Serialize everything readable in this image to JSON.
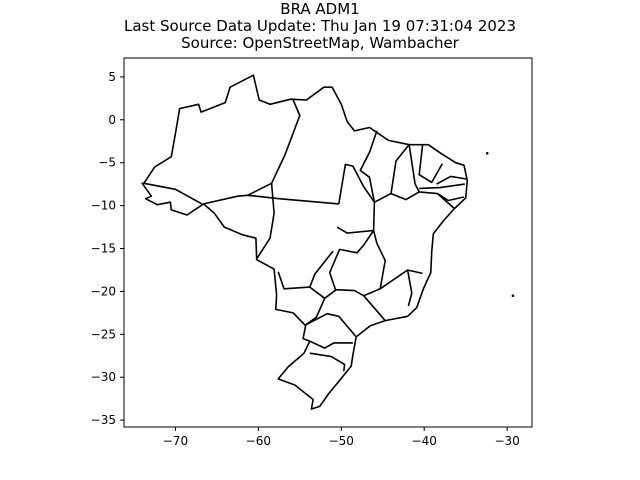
{
  "titles": {
    "line1": "BRA ADM1",
    "line2": "Last Source Data Update: Thu Jan 19 07:31:04 2023",
    "line3": "Source: OpenStreetMap, Wambacher"
  },
  "chart_data": {
    "type": "map",
    "title": "BRA ADM1",
    "subtitle": [
      "Last Source Data Update: Thu Jan 19 07:31:04 2023",
      "Source: OpenStreetMap, Wambacher"
    ],
    "xlabel": "",
    "ylabel": "",
    "xlim": [
      -76.2,
      -27
    ],
    "ylim": [
      -35.8,
      7.2
    ],
    "xticks": [
      -70,
      -60,
      -50,
      -40,
      -30
    ],
    "yticks": [
      5,
      0,
      -5,
      -10,
      -15,
      -20,
      -25,
      -30,
      -35
    ],
    "xtick_labels": [
      "−70",
      "−60",
      "−50",
      "−40",
      "−30"
    ],
    "ytick_labels": [
      "5",
      "0",
      "−5",
      "−10",
      "−15",
      "−20",
      "−25",
      "−30",
      "−35"
    ],
    "grid": false,
    "outline": [
      [
        -73.8,
        -7.4
      ],
      [
        -72.5,
        -5.5
      ],
      [
        -70.5,
        -4.3
      ],
      [
        -69.9,
        -1.1
      ],
      [
        -69.5,
        1.3
      ],
      [
        -67.2,
        1.8
      ],
      [
        -66.9,
        0.9
      ],
      [
        -64,
        2
      ],
      [
        -63.4,
        3.8
      ],
      [
        -60.6,
        5.2
      ],
      [
        -59.9,
        2.3
      ],
      [
        -58.6,
        1.8
      ],
      [
        -56.1,
        2.4
      ],
      [
        -54.2,
        2.3
      ],
      [
        -52.1,
        3.8
      ],
      [
        -51.1,
        3.8
      ],
      [
        -50,
        1.8
      ],
      [
        -49.3,
        -0.2
      ],
      [
        -48.4,
        -1.3
      ],
      [
        -46.6,
        -0.9
      ],
      [
        -44.3,
        -2.4
      ],
      [
        -41.8,
        -2.9
      ],
      [
        -39.5,
        -2.9
      ],
      [
        -38,
        -3.9
      ],
      [
        -36.2,
        -5
      ],
      [
        -35.2,
        -5.3
      ],
      [
        -34.8,
        -7.1
      ],
      [
        -35,
        -9.1
      ],
      [
        -36.4,
        -10.4
      ],
      [
        -37.7,
        -11.8
      ],
      [
        -38.9,
        -13.3
      ],
      [
        -39.1,
        -15.4
      ],
      [
        -39.2,
        -17.8
      ],
      [
        -40.1,
        -19.7
      ],
      [
        -40.9,
        -21.9
      ],
      [
        -42,
        -22.9
      ],
      [
        -44.7,
        -23.4
      ],
      [
        -46.5,
        -24
      ],
      [
        -48.2,
        -25.3
      ],
      [
        -48.6,
        -27.4
      ],
      [
        -48.8,
        -28.7
      ],
      [
        -50.4,
        -30.6
      ],
      [
        -51.5,
        -31.9
      ],
      [
        -52.6,
        -33.4
      ],
      [
        -53.6,
        -33.7
      ],
      [
        -53.4,
        -32.6
      ],
      [
        -55.6,
        -30.9
      ],
      [
        -57.6,
        -30.2
      ],
      [
        -56.4,
        -28.8
      ],
      [
        -54.5,
        -27.2
      ],
      [
        -53.8,
        -25.8
      ],
      [
        -54.6,
        -25.5
      ],
      [
        -54.3,
        -24
      ],
      [
        -55.8,
        -22.5
      ],
      [
        -57.9,
        -22.1
      ],
      [
        -57.8,
        -20.4
      ],
      [
        -58.1,
        -17.4
      ],
      [
        -60.2,
        -16.3
      ],
      [
        -60.3,
        -13.8
      ],
      [
        -61.9,
        -13.4
      ],
      [
        -64.1,
        -12.5
      ],
      [
        -65.3,
        -10.9
      ],
      [
        -66.6,
        -9.8
      ],
      [
        -68.6,
        -11.1
      ],
      [
        -70.5,
        -10.5
      ],
      [
        -70.6,
        -9.6
      ],
      [
        -72.2,
        -9.9
      ],
      [
        -73.6,
        -9.2
      ],
      [
        -72.9,
        -8.9
      ],
      [
        -74,
        -7.4
      ]
    ],
    "boundaries": [
      [
        [
          -73.8,
          -7.4
        ],
        [
          -70,
          -8.1
        ],
        [
          -66.8,
          -9.8
        ]
      ],
      [
        [
          -66.6,
          -9.8
        ],
        [
          -62.5,
          -8.9
        ],
        [
          -61.3,
          -8.8
        ]
      ],
      [
        [
          -61.3,
          -8.8
        ],
        [
          -58.4,
          -7.4
        ],
        [
          -56.8,
          -4.1
        ],
        [
          -55,
          0.5
        ],
        [
          -55.8,
          2.3
        ]
      ],
      [
        [
          -61.3,
          -8.8
        ],
        [
          -57.5,
          -9.2
        ],
        [
          -50.3,
          -9.8
        ]
      ],
      [
        [
          -58.4,
          -7.4
        ],
        [
          -58.1,
          -10.9
        ],
        [
          -58.6,
          -13.8
        ],
        [
          -60.2,
          -16.2
        ]
      ],
      [
        [
          -50.3,
          -9.8
        ],
        [
          -49.5,
          -5.2
        ],
        [
          -48.6,
          -5.4
        ],
        [
          -47.3,
          -7.8
        ],
        [
          -46,
          -9.6
        ],
        [
          -46.1,
          -12.9
        ],
        [
          -49.3,
          -13.2
        ],
        [
          -50.5,
          -12.5
        ]
      ],
      [
        [
          -51,
          -15.3
        ],
        [
          -53.2,
          -18
        ],
        [
          -53.8,
          -19.5
        ],
        [
          -56.9,
          -19.7
        ],
        [
          -57.6,
          -17.7
        ]
      ],
      [
        [
          -53.8,
          -19.5
        ],
        [
          -52,
          -20.8
        ],
        [
          -53,
          -23
        ],
        [
          -54.3,
          -23.9
        ]
      ],
      [
        [
          -52,
          -20.8
        ],
        [
          -50.6,
          -19.8
        ],
        [
          -48.4,
          -19.9
        ],
        [
          -47.3,
          -20.5
        ],
        [
          -44.7,
          -23.4
        ]
      ],
      [
        [
          -47.3,
          -20.5
        ],
        [
          -45.3,
          -19.7
        ],
        [
          -44.7,
          -16.4
        ],
        [
          -45.7,
          -14.4
        ],
        [
          -46.1,
          -12.9
        ]
      ],
      [
        [
          -50.7,
          -19.8
        ],
        [
          -51.4,
          -17.8
        ],
        [
          -50.2,
          -15.1
        ],
        [
          -48.1,
          -15.5
        ],
        [
          -47.3,
          -14.6
        ],
        [
          -46.1,
          -12.9
        ]
      ],
      [
        [
          -45.3,
          -19.7
        ],
        [
          -42,
          -17.5
        ],
        [
          -40.2,
          -17.9
        ]
      ],
      [
        [
          -42,
          -17.5
        ],
        [
          -41.5,
          -20.2
        ],
        [
          -41.9,
          -21.7
        ]
      ],
      [
        [
          -46,
          -9.6
        ],
        [
          -44,
          -8.6
        ],
        [
          -42.2,
          -9.3
        ],
        [
          -40.6,
          -8.4
        ],
        [
          -38.4,
          -8.6
        ],
        [
          -36.3,
          -10.4
        ]
      ],
      [
        [
          -46,
          -9.6
        ],
        [
          -46.6,
          -6.7
        ],
        [
          -47.7,
          -5.9
        ],
        [
          -46.6,
          -3.8
        ],
        [
          -45.7,
          -1.3
        ]
      ],
      [
        [
          -44,
          -8.6
        ],
        [
          -43.4,
          -4.8
        ],
        [
          -41.9,
          -3
        ]
      ],
      [
        [
          -41.8,
          -3
        ],
        [
          -41.1,
          -7.5
        ],
        [
          -40.6,
          -8.4
        ]
      ],
      [
        [
          -40.2,
          -3
        ],
        [
          -40.6,
          -6.4
        ],
        [
          -39.1,
          -7.3
        ],
        [
          -37.8,
          -5.1
        ]
      ],
      [
        [
          -38.5,
          -7.5
        ],
        [
          -36.8,
          -6.6
        ],
        [
          -34.9,
          -6.9
        ]
      ],
      [
        [
          -40.6,
          -8
        ],
        [
          -38.1,
          -7.9
        ],
        [
          -35.1,
          -7.5
        ]
      ],
      [
        [
          -38.4,
          -8.6
        ],
        [
          -37.1,
          -9.4
        ],
        [
          -35.2,
          -9
        ]
      ],
      [
        [
          -54.3,
          -23.9
        ],
        [
          -51.7,
          -22.6
        ],
        [
          -50.3,
          -22.9
        ],
        [
          -48.2,
          -25.3
        ]
      ],
      [
        [
          -53.8,
          -25.8
        ],
        [
          -52,
          -26.6
        ],
        [
          -50.9,
          -26
        ],
        [
          -48.6,
          -26
        ]
      ],
      [
        [
          -53.8,
          -27.2
        ],
        [
          -51.2,
          -27.6
        ],
        [
          -49.6,
          -28.5
        ],
        [
          -49.7,
          -29.3
        ]
      ]
    ],
    "islands": [
      [
        -32.4,
        -3.9
      ],
      [
        -29.3,
        -20.5
      ]
    ]
  }
}
